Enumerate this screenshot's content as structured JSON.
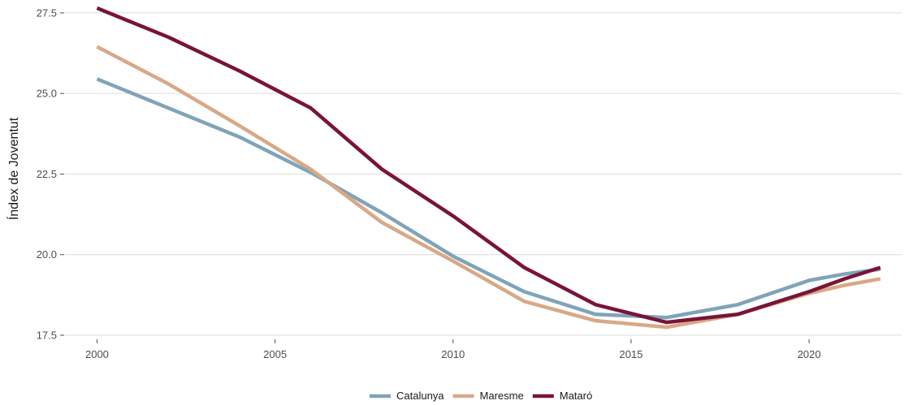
{
  "chart_data": {
    "type": "line",
    "title": "",
    "xlabel": "",
    "ylabel": "Índex de Joventut",
    "xlim": [
      1999.1,
      2022.6
    ],
    "ylim": [
      17.4,
      27.9
    ],
    "x_ticks": [
      2000,
      2005,
      2010,
      2015,
      2020
    ],
    "x_tick_labels": [
      "2000",
      "2005",
      "2010",
      "2015",
      "2020"
    ],
    "y_ticks": [
      17.5,
      20.0,
      22.5,
      25.0,
      27.5
    ],
    "y_tick_labels": [
      "17.5",
      "20.0",
      "22.5",
      "25.0",
      "27.5"
    ],
    "grid": "horizontal",
    "legend_position": "bottom",
    "x": [
      2000,
      2002,
      2004,
      2006,
      2008,
      2010,
      2012,
      2014,
      2016,
      2018,
      2020,
      2021,
      2022
    ],
    "series": [
      {
        "name": "Catalunya",
        "color": "#7fa4b8",
        "values": [
          25.45,
          24.55,
          23.65,
          22.55,
          21.3,
          19.95,
          18.85,
          18.15,
          18.05,
          18.45,
          19.2,
          19.4,
          19.55
        ]
      },
      {
        "name": "Maresme",
        "color": "#d9a886",
        "values": [
          26.45,
          25.3,
          24.0,
          22.65,
          21.0,
          19.8,
          18.55,
          17.95,
          17.75,
          18.15,
          18.8,
          19.05,
          19.25
        ]
      },
      {
        "name": "Mataró",
        "color": "#7a1339",
        "values": [
          27.65,
          26.75,
          25.7,
          24.55,
          22.65,
          21.2,
          19.6,
          18.45,
          17.9,
          18.15,
          18.85,
          19.25,
          19.6
        ]
      }
    ]
  }
}
